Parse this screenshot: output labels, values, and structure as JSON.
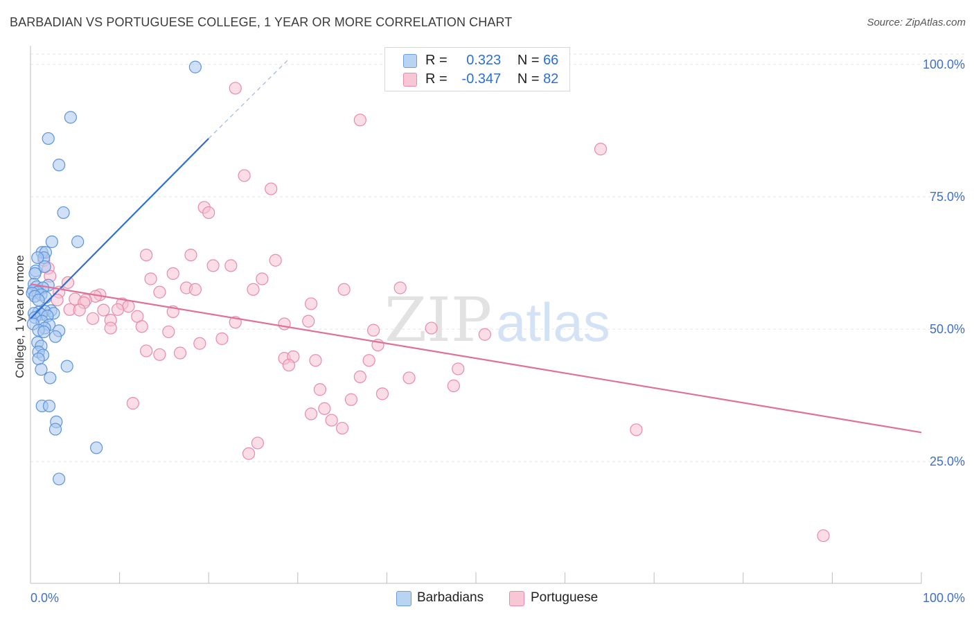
{
  "header": {
    "title": "BARBADIAN VS PORTUGUESE COLLEGE, 1 YEAR OR MORE CORRELATION CHART",
    "source": "Source: ZipAtlas.com"
  },
  "legend": {
    "rows": [
      {
        "r_label": "R =",
        "r_value": "0.323",
        "n_label": "N =",
        "n_value": "66"
      },
      {
        "r_label": "R =",
        "r_value": "-0.347",
        "n_label": "N =",
        "n_value": "82"
      }
    ]
  },
  "bottom_legend": {
    "items": [
      "Barbadians",
      "Portuguese"
    ]
  },
  "watermark": {
    "zip": "ZIP",
    "atlas": "atlas"
  },
  "colors": {
    "blue_fill": "#a9c8f0",
    "blue_stroke": "#5b93dc",
    "blue_line": "#2f6fd1",
    "pink_fill": "#f6c1d2",
    "pink_stroke": "#e98aa9",
    "pink_line": "#e0709a",
    "tick_text": "#3f6fc7",
    "grid": "#e3e3e3"
  },
  "chart_data": {
    "type": "scatter",
    "title": "BARBADIAN VS PORTUGUESE COLLEGE, 1 YEAR OR MORE CORRELATION CHART",
    "xlabel": "",
    "ylabel": "College, 1 year or more",
    "xlim": [
      0,
      100
    ],
    "ylim": [
      2,
      103
    ],
    "x_tick_labels": [
      "0.0%",
      "100.0%"
    ],
    "y_ticks": [
      25,
      50,
      75,
      100
    ],
    "y_tick_labels": [
      "25.0%",
      "50.0%",
      "75.0%",
      "100.0%"
    ],
    "grid": true,
    "series": [
      {
        "name": "Barbadians",
        "r": 0.323,
        "n": 66,
        "trend": {
          "x0": 0,
          "y0": 52,
          "x1": 20,
          "y1": 86,
          "dash_x1": 29,
          "dash_y1": 101
        },
        "points": [
          [
            18.5,
            99.5
          ],
          [
            4.5,
            90
          ],
          [
            2,
            86
          ],
          [
            3.2,
            81
          ],
          [
            3.7,
            72
          ],
          [
            5.3,
            66.5
          ],
          [
            2.4,
            66.5
          ],
          [
            1.3,
            64.5
          ],
          [
            1.7,
            64.5
          ],
          [
            1.5,
            63.5
          ],
          [
            0.8,
            63.5
          ],
          [
            0.6,
            61
          ],
          [
            1.6,
            61.8
          ],
          [
            0.5,
            60.5
          ],
          [
            0.4,
            58.5
          ],
          [
            0.7,
            58
          ],
          [
            2.0,
            58.3
          ],
          [
            1.4,
            57.8
          ],
          [
            0.3,
            57.3
          ],
          [
            0.8,
            57
          ],
          [
            0.2,
            56.8
          ],
          [
            1.2,
            56.5
          ],
          [
            0.5,
            56.2
          ],
          [
            1.7,
            56
          ],
          [
            0.9,
            55.5
          ],
          [
            2.3,
            53.5
          ],
          [
            1.6,
            53.4
          ],
          [
            0.9,
            53.2
          ],
          [
            0.4,
            53
          ],
          [
            2.6,
            53
          ],
          [
            1.2,
            52.8
          ],
          [
            1.9,
            52.5
          ],
          [
            0.5,
            52.2
          ],
          [
            1.3,
            51.5
          ],
          [
            0.3,
            51
          ],
          [
            2.1,
            50.8
          ],
          [
            1.6,
            50.2
          ],
          [
            0.9,
            49.8
          ],
          [
            3.2,
            49.7
          ],
          [
            1.5,
            49.5
          ],
          [
            2.8,
            48.6
          ],
          [
            0.8,
            47.5
          ],
          [
            1.2,
            46.8
          ],
          [
            0.9,
            45.7
          ],
          [
            1.4,
            45.1
          ],
          [
            0.9,
            44.4
          ],
          [
            4.1,
            43.0
          ],
          [
            1.2,
            42.4
          ],
          [
            2.2,
            40.8
          ],
          [
            1.3,
            35.5
          ],
          [
            2.1,
            35.5
          ],
          [
            2.9,
            32.5
          ],
          [
            2.8,
            31.1
          ],
          [
            7.4,
            27.6
          ],
          [
            3.2,
            21.7
          ]
        ]
      },
      {
        "name": "Portuguese",
        "r": -0.347,
        "n": 82,
        "trend": {
          "x0": 0,
          "y0": 58.5,
          "x1": 100,
          "y1": 30.5
        },
        "points": [
          [
            23,
            95.5
          ],
          [
            37,
            89.5
          ],
          [
            64,
            84
          ],
          [
            24,
            79
          ],
          [
            27,
            76.5
          ],
          [
            19.5,
            73
          ],
          [
            20,
            72
          ],
          [
            1.5,
            63
          ],
          [
            13,
            64
          ],
          [
            18,
            64
          ],
          [
            27.5,
            63
          ],
          [
            20.5,
            62
          ],
          [
            22.5,
            62
          ],
          [
            2,
            61.5
          ],
          [
            2.2,
            60
          ],
          [
            16,
            60.5
          ],
          [
            13.5,
            59.5
          ],
          [
            26,
            59.5
          ],
          [
            4.2,
            58.8
          ],
          [
            17.5,
            57.8
          ],
          [
            18.5,
            57.5
          ],
          [
            25,
            57.5
          ],
          [
            35.2,
            57.5
          ],
          [
            41.5,
            57.8
          ],
          [
            3.2,
            57
          ],
          [
            7.8,
            56.5
          ],
          [
            14.5,
            57
          ],
          [
            7.3,
            56.2
          ],
          [
            5,
            55.7
          ],
          [
            6.2,
            55.5
          ],
          [
            3,
            55.5
          ],
          [
            6,
            55
          ],
          [
            10.3,
            54.8
          ],
          [
            31.5,
            54.8
          ],
          [
            11,
            54.3
          ],
          [
            8.2,
            53.6
          ],
          [
            9.8,
            53.7
          ],
          [
            4.4,
            53.7
          ],
          [
            16,
            53.3
          ],
          [
            5.5,
            53.6
          ],
          [
            12,
            52.4
          ],
          [
            7,
            52
          ],
          [
            9,
            51.7
          ],
          [
            23,
            51.3
          ],
          [
            31.2,
            51.5
          ],
          [
            28.5,
            51
          ],
          [
            12.5,
            50.5
          ],
          [
            9,
            50.2
          ],
          [
            38.5,
            49.8
          ],
          [
            45,
            50.2
          ],
          [
            15.5,
            49.5
          ],
          [
            51,
            49
          ],
          [
            21.5,
            48.2
          ],
          [
            19,
            47.3
          ],
          [
            39,
            47
          ],
          [
            13,
            45.9
          ],
          [
            14.5,
            45.2
          ],
          [
            16.8,
            45.5
          ],
          [
            28.5,
            44.5
          ],
          [
            29.5,
            44.8
          ],
          [
            32,
            44.1
          ],
          [
            38,
            44.1
          ],
          [
            29,
            43.2
          ],
          [
            48,
            42.5
          ],
          [
            37,
            41
          ],
          [
            42.5,
            40.8
          ],
          [
            47.5,
            39.3
          ],
          [
            32.5,
            38.6
          ],
          [
            39.5,
            37.8
          ],
          [
            36,
            36.7
          ],
          [
            11.5,
            36
          ],
          [
            33,
            35
          ],
          [
            31.5,
            34
          ],
          [
            33.8,
            32.8
          ],
          [
            35,
            31.3
          ],
          [
            68,
            31
          ],
          [
            25.5,
            28.5
          ],
          [
            24.5,
            26.5
          ],
          [
            89,
            11
          ]
        ]
      }
    ]
  }
}
